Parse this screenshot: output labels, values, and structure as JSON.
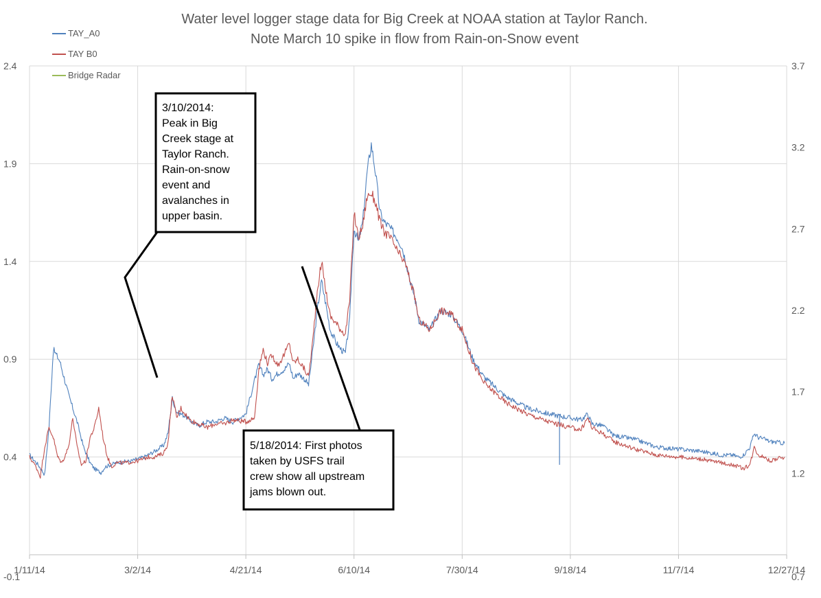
{
  "chart_data": {
    "type": "line",
    "title": [
      "Water level logger stage data for Big Creek at NOAA station at Taylor Ranch.",
      "Note March 10 spike in flow from Rain-on-Snow event"
    ],
    "x_tick_labels": [
      "1/11/14",
      "3/2/14",
      "4/21/14",
      "6/10/14",
      "7/30/14",
      "9/18/14",
      "11/7/14",
      "12/27/14"
    ],
    "x_range_days": [
      0,
      350
    ],
    "y_left": {
      "ticks": [
        "-0.1",
        "0.4",
        "0.9",
        "1.4",
        "1.9",
        "2.4"
      ],
      "range": [
        -0.1,
        2.4
      ]
    },
    "y_right": {
      "ticks": [
        "0.7",
        "1.2",
        "1.7",
        "2.2",
        "2.7",
        "3.2",
        "3.7"
      ],
      "range": [
        0.7,
        3.7
      ]
    },
    "legend": [
      {
        "name": "TAY_A0",
        "color": "#4f81bd"
      },
      {
        "name": "TAY B0",
        "color": "#c0504d"
      },
      {
        "name": "Bridge Radar",
        "color": "#9bbb59"
      }
    ],
    "series": [
      {
        "name": "TAY_A0",
        "color": "#4f81bd",
        "x_days": [
          0,
          4,
          7,
          9,
          11,
          14,
          18,
          22,
          25,
          28,
          30,
          33,
          35,
          40,
          47,
          53,
          58,
          62,
          64,
          66,
          68,
          70,
          72,
          75,
          78,
          82,
          86,
          90,
          94,
          100,
          104,
          106,
          108,
          110,
          112,
          115,
          118,
          120,
          122,
          124,
          127,
          129,
          131,
          133,
          135,
          137,
          139,
          142,
          144,
          146,
          148,
          149,
          150,
          152,
          154,
          156,
          158,
          160,
          162,
          164,
          166,
          168,
          170,
          172,
          174,
          176,
          178,
          180,
          185,
          190,
          195,
          200,
          205,
          210,
          220,
          230,
          240,
          250,
          255,
          258,
          260,
          265,
          270,
          280,
          290,
          300,
          310,
          315,
          320,
          325,
          328,
          330,
          333,
          335,
          337,
          340,
          342,
          349
        ],
        "y_values": [
          0.41,
          0.36,
          0.31,
          0.55,
          0.95,
          0.89,
          0.72,
          0.58,
          0.45,
          0.37,
          0.34,
          0.32,
          0.35,
          0.37,
          0.38,
          0.4,
          0.43,
          0.46,
          0.52,
          0.7,
          0.63,
          0.62,
          0.61,
          0.58,
          0.56,
          0.58,
          0.58,
          0.6,
          0.58,
          0.62,
          0.79,
          0.87,
          0.82,
          0.85,
          0.8,
          0.83,
          0.85,
          0.88,
          0.8,
          0.83,
          0.8,
          0.77,
          0.95,
          1.15,
          1.3,
          1.18,
          1.05,
          0.98,
          0.95,
          0.93,
          1.1,
          1.35,
          1.57,
          1.5,
          1.6,
          1.85,
          2.0,
          1.85,
          1.65,
          1.6,
          1.58,
          1.55,
          1.52,
          1.48,
          1.4,
          1.3,
          1.22,
          1.1,
          1.05,
          1.15,
          1.13,
          1.05,
          0.9,
          0.81,
          0.71,
          0.65,
          0.62,
          0.6,
          0.59,
          0.62,
          0.57,
          0.56,
          0.51,
          0.49,
          0.45,
          0.44,
          0.43,
          0.42,
          0.41,
          0.41,
          0.4,
          0.41,
          0.45,
          0.52,
          0.5,
          0.49,
          0.48,
          0.47
        ]
      },
      {
        "name": "TAY B0",
        "color": "#c0504d",
        "x_days": [
          0,
          3,
          5,
          7,
          9,
          11,
          13,
          15,
          18,
          20,
          22,
          24,
          26,
          28,
          30,
          32,
          34,
          36,
          38,
          40,
          45,
          50,
          55,
          58,
          62,
          64,
          66,
          68,
          70,
          72,
          74,
          78,
          82,
          86,
          90,
          94,
          100,
          104,
          106,
          108,
          110,
          112,
          115,
          118,
          120,
          122,
          124,
          127,
          129,
          131,
          133,
          135,
          137,
          139,
          142,
          144,
          146,
          148,
          149,
          150,
          152,
          154,
          156,
          158,
          160,
          162,
          164,
          166,
          168,
          170,
          172,
          174,
          176,
          178,
          180,
          185,
          190,
          195,
          200,
          205,
          210,
          220,
          230,
          240,
          250,
          255,
          258,
          260,
          265,
          270,
          280,
          290,
          300,
          310,
          315,
          320,
          325,
          328,
          330,
          333,
          335,
          337,
          340,
          342,
          349
        ],
        "y_values": [
          0.4,
          0.35,
          0.3,
          0.45,
          0.55,
          0.5,
          0.4,
          0.37,
          0.45,
          0.6,
          0.45,
          0.36,
          0.38,
          0.5,
          0.55,
          0.65,
          0.5,
          0.4,
          0.35,
          0.37,
          0.37,
          0.38,
          0.4,
          0.4,
          0.42,
          0.47,
          0.72,
          0.6,
          0.65,
          0.62,
          0.59,
          0.57,
          0.55,
          0.57,
          0.57,
          0.59,
          0.58,
          0.6,
          0.85,
          0.95,
          0.88,
          0.92,
          0.87,
          0.93,
          0.98,
          0.88,
          0.9,
          0.85,
          0.81,
          1.0,
          1.25,
          1.4,
          1.25,
          1.12,
          1.08,
          1.05,
          1.03,
          1.2,
          1.42,
          1.65,
          1.52,
          1.58,
          1.73,
          1.75,
          1.7,
          1.6,
          1.55,
          1.53,
          1.5,
          1.45,
          1.42,
          1.38,
          1.3,
          1.22,
          1.1,
          1.05,
          1.15,
          1.13,
          1.05,
          0.88,
          0.78,
          0.68,
          0.62,
          0.58,
          0.55,
          0.54,
          0.6,
          0.55,
          0.52,
          0.48,
          0.44,
          0.41,
          0.4,
          0.39,
          0.38,
          0.37,
          0.36,
          0.35,
          0.34,
          0.36,
          0.45,
          0.41,
          0.4,
          0.38,
          0.4
        ]
      },
      {
        "name": "Bridge Radar",
        "color": "#9bbb59",
        "x_days": [],
        "y_values": []
      }
    ],
    "annotations": [
      {
        "id": "peak",
        "lines": [
          "3/10/2014:",
          "Peak in Big",
          "Creek stage at",
          "Taylor Ranch.",
          "Rain-on-snow",
          "event and",
          "avalanches in",
          "upper basin."
        ]
      },
      {
        "id": "photos",
        "lines": [
          "5/18/2014: First photos",
          "taken by USFS trail",
          "crew show all upstream",
          "jams blown out."
        ]
      }
    ]
  }
}
